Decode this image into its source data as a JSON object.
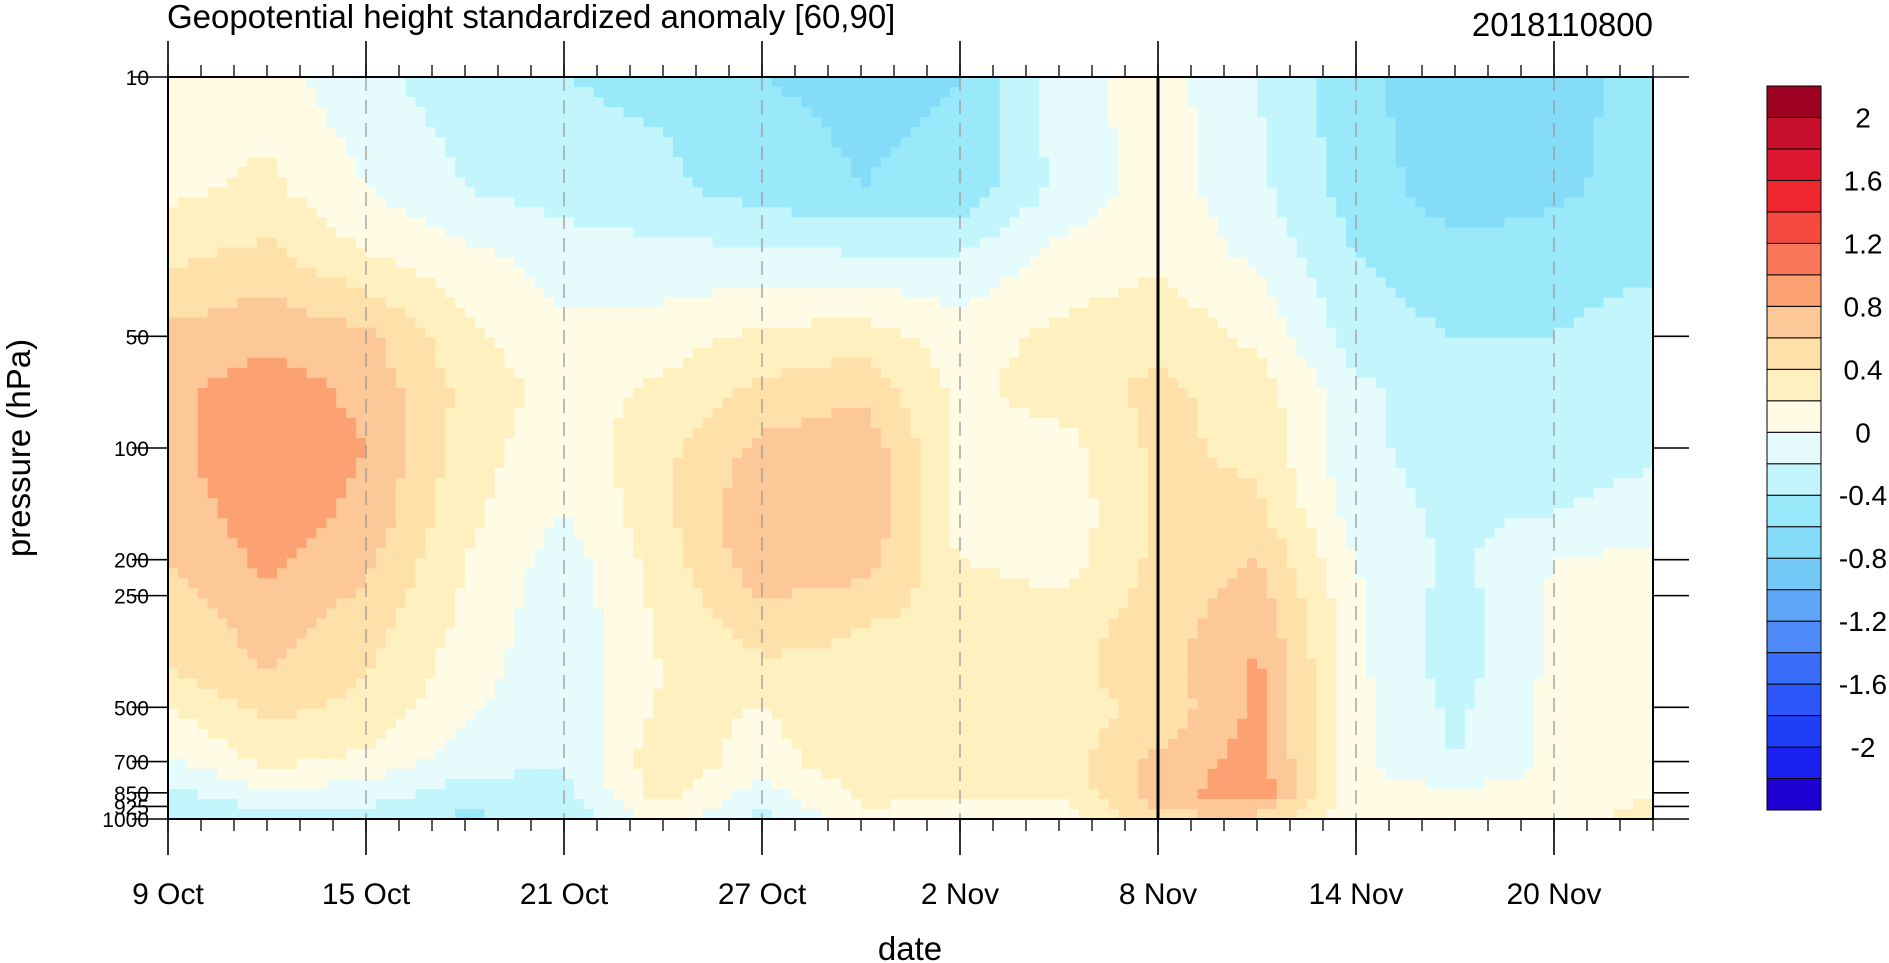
{
  "chart_data": {
    "type": "heatmap",
    "title": "Geopotential height standardized anomaly [60,90]",
    "date_label": "2018110800",
    "xlabel": "date",
    "ylabel": "pressure (hPa)",
    "x_range": [
      "2018-10-09",
      "2018-11-23"
    ],
    "x_ticks": [
      {
        "date": "2018-10-09",
        "label": "9 Oct"
      },
      {
        "date": "2018-10-15",
        "label": "15 Oct"
      },
      {
        "date": "2018-10-21",
        "label": "21 Oct"
      },
      {
        "date": "2018-10-27",
        "label": "27 Oct"
      },
      {
        "date": "2018-11-02",
        "label": "2 Nov"
      },
      {
        "date": "2018-11-08",
        "label": "8 Nov"
      },
      {
        "date": "2018-11-14",
        "label": "14 Nov"
      },
      {
        "date": "2018-11-20",
        "label": "20 Nov"
      }
    ],
    "current_date": "2018-11-08",
    "y_scale": "log",
    "y_reversed": true,
    "y_range": [
      1000,
      10
    ],
    "y_ticks": [
      {
        "value": 10,
        "label": "10"
      },
      {
        "value": 50,
        "label": "50"
      },
      {
        "value": 100,
        "label": "100"
      },
      {
        "value": 200,
        "label": "200"
      },
      {
        "value": 250,
        "label": "250"
      },
      {
        "value": 500,
        "label": "500"
      },
      {
        "value": 700,
        "label": "700"
      },
      {
        "value": 850,
        "label": "850"
      },
      {
        "value": 925,
        "label": "925"
      },
      {
        "value": 1000,
        "label": "1000"
      }
    ],
    "colorbar": {
      "levels": [
        -2.2,
        -2,
        -1.8,
        -1.6,
        -1.4,
        -1.2,
        -1,
        -0.8,
        -0.6,
        -0.4,
        -0.2,
        0,
        0.2,
        0.4,
        0.6,
        0.8,
        1,
        1.2,
        1.4,
        1.6,
        1.8,
        2,
        2.2
      ],
      "colors": [
        "#1e00d4",
        "#1a20f0",
        "#1e3ef8",
        "#2c55fa",
        "#3a6cfa",
        "#4d8af8",
        "#5fa6f6",
        "#72c8f7",
        "#85dcf8",
        "#9ae9fb",
        "#c2f5fc",
        "#e6fcfc",
        "#fffbe4",
        "#fff0c0",
        "#ffe0a8",
        "#fdc898",
        "#fca272",
        "#f8755a",
        "#f4493f",
        "#ee2730",
        "#de1830",
        "#c8102e",
        "#9e0022"
      ],
      "labels": [
        {
          "value": 2,
          "label": "2"
        },
        {
          "value": 1.6,
          "label": "1.6"
        },
        {
          "value": 1.2,
          "label": "1.2"
        },
        {
          "value": 0.8,
          "label": "0.8"
        },
        {
          "value": 0.4,
          "label": "0.4"
        },
        {
          "value": 0,
          "label": "0"
        },
        {
          "value": -0.4,
          "label": "-0.4"
        },
        {
          "value": -0.8,
          "label": "-0.8"
        },
        {
          "value": -1.2,
          "label": "-1.2"
        },
        {
          "value": -1.6,
          "label": "-1.6"
        },
        {
          "value": -2,
          "label": "-2"
        }
      ]
    },
    "field": {
      "x_dates": [
        "2018-10-09",
        "2018-10-12",
        "2018-10-15",
        "2018-10-18",
        "2018-10-21",
        "2018-10-24",
        "2018-10-27",
        "2018-10-30",
        "2018-11-02",
        "2018-11-05",
        "2018-11-08",
        "2018-11-11",
        "2018-11-14",
        "2018-11-17",
        "2018-11-20",
        "2018-11-23"
      ],
      "pressure_levels": [
        10,
        20,
        30,
        50,
        70,
        100,
        150,
        200,
        300,
        400,
        500,
        700,
        850,
        1000
      ],
      "values": [
        [
          0.05,
          0.1,
          -0.15,
          -0.3,
          -0.4,
          -0.45,
          -0.6,
          -0.65,
          -0.6,
          -0.1,
          0.1,
          -0.2,
          -0.55,
          -0.75,
          -0.7,
          -0.5
        ],
        [
          0.15,
          0.25,
          0.0,
          -0.2,
          -0.3,
          -0.35,
          -0.5,
          -0.6,
          -0.55,
          -0.15,
          0.1,
          -0.15,
          -0.5,
          -0.7,
          -0.65,
          -0.5
        ],
        [
          0.35,
          0.45,
          0.2,
          0.05,
          -0.1,
          -0.15,
          -0.15,
          -0.2,
          -0.2,
          0.05,
          0.15,
          -0.05,
          -0.4,
          -0.55,
          -0.5,
          -0.45
        ],
        [
          0.65,
          0.75,
          0.65,
          0.25,
          0.05,
          0.1,
          0.25,
          0.3,
          0.1,
          0.25,
          0.35,
          0.15,
          -0.3,
          -0.4,
          -0.4,
          -0.3
        ],
        [
          0.75,
          0.9,
          0.75,
          0.35,
          0.1,
          0.25,
          0.45,
          0.55,
          0.15,
          0.3,
          0.45,
          0.3,
          -0.15,
          -0.35,
          -0.3,
          -0.25
        ],
        [
          0.75,
          0.95,
          0.8,
          0.3,
          0.05,
          0.35,
          0.65,
          0.75,
          0.15,
          0.1,
          0.45,
          0.35,
          -0.15,
          -0.3,
          -0.3,
          -0.25
        ],
        [
          0.7,
          0.9,
          0.75,
          0.25,
          0.0,
          0.35,
          0.8,
          0.8,
          0.1,
          0.05,
          0.45,
          0.45,
          -0.1,
          -0.25,
          -0.2,
          -0.1
        ],
        [
          0.6,
          0.85,
          0.65,
          0.2,
          -0.1,
          0.3,
          0.75,
          0.7,
          0.2,
          0.1,
          0.45,
          0.6,
          0.0,
          -0.25,
          0.0,
          0.05
        ],
        [
          0.45,
          0.7,
          0.5,
          0.15,
          -0.15,
          0.25,
          0.5,
          0.4,
          0.35,
          0.3,
          0.5,
          0.75,
          0.05,
          -0.3,
          0.05,
          0.1
        ],
        [
          0.4,
          0.6,
          0.4,
          0.1,
          -0.15,
          0.2,
          0.35,
          0.35,
          0.4,
          0.35,
          0.5,
          0.85,
          0.05,
          -0.3,
          0.05,
          0.1
        ],
        [
          0.2,
          0.45,
          0.35,
          0.05,
          -0.2,
          0.25,
          0.2,
          0.35,
          0.4,
          0.3,
          0.45,
          0.85,
          0.05,
          -0.25,
          0.05,
          0.1
        ],
        [
          -0.05,
          0.25,
          0.15,
          -0.1,
          -0.2,
          0.35,
          0.1,
          0.35,
          0.3,
          0.3,
          0.65,
          0.9,
          0.05,
          -0.2,
          0.05,
          0.1
        ],
        [
          -0.25,
          -0.05,
          -0.1,
          -0.3,
          -0.25,
          0.3,
          -0.1,
          0.25,
          0.2,
          0.25,
          0.7,
          0.95,
          0.05,
          0.05,
          0.05,
          0.2
        ],
        [
          -0.35,
          -0.3,
          -0.3,
          -0.45,
          -0.35,
          0.1,
          -0.25,
          0.15,
          0.15,
          0.05,
          0.55,
          0.55,
          0.05,
          0.05,
          0.1,
          0.3
        ]
      ]
    }
  }
}
